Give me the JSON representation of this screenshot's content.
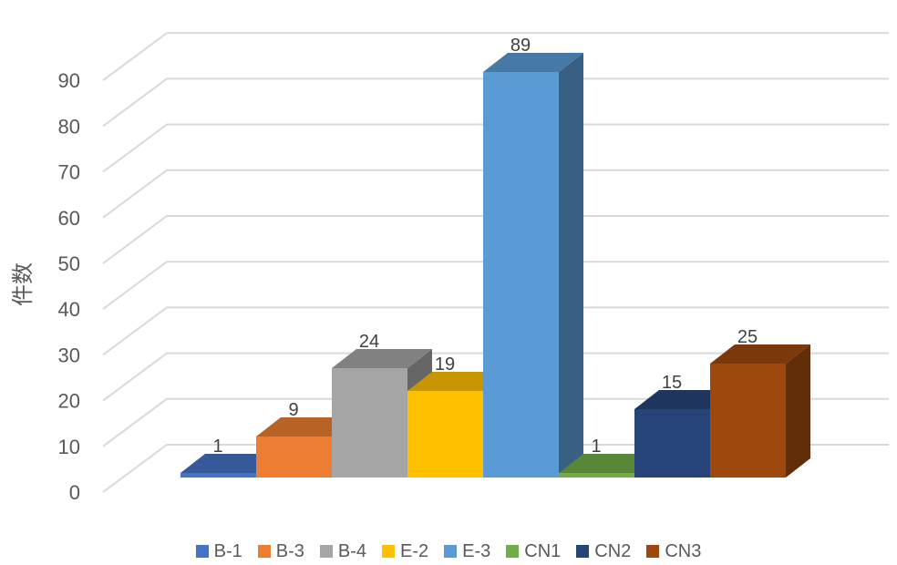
{
  "chart_data": {
    "type": "bar",
    "style": "3d-column",
    "categories": [
      "B-1",
      "B-3",
      "B-4",
      "E-2",
      "E-3",
      "CN1",
      "CN2",
      "CN3"
    ],
    "values": [
      1,
      9,
      24,
      19,
      89,
      1,
      15,
      25
    ],
    "colors": [
      "#4472C4",
      "#ED7D31",
      "#A5A5A5",
      "#FFC000",
      "#5B9BD5",
      "#70AD47",
      "#264478",
      "#9E480E"
    ],
    "title": "",
    "xlabel": "",
    "ylabel": "件数",
    "ylim": [
      0,
      90
    ],
    "yticks": [
      0,
      10,
      20,
      30,
      40,
      50,
      60,
      70,
      80,
      90
    ],
    "grid": true,
    "legend_position": "bottom",
    "data_labels": true
  }
}
